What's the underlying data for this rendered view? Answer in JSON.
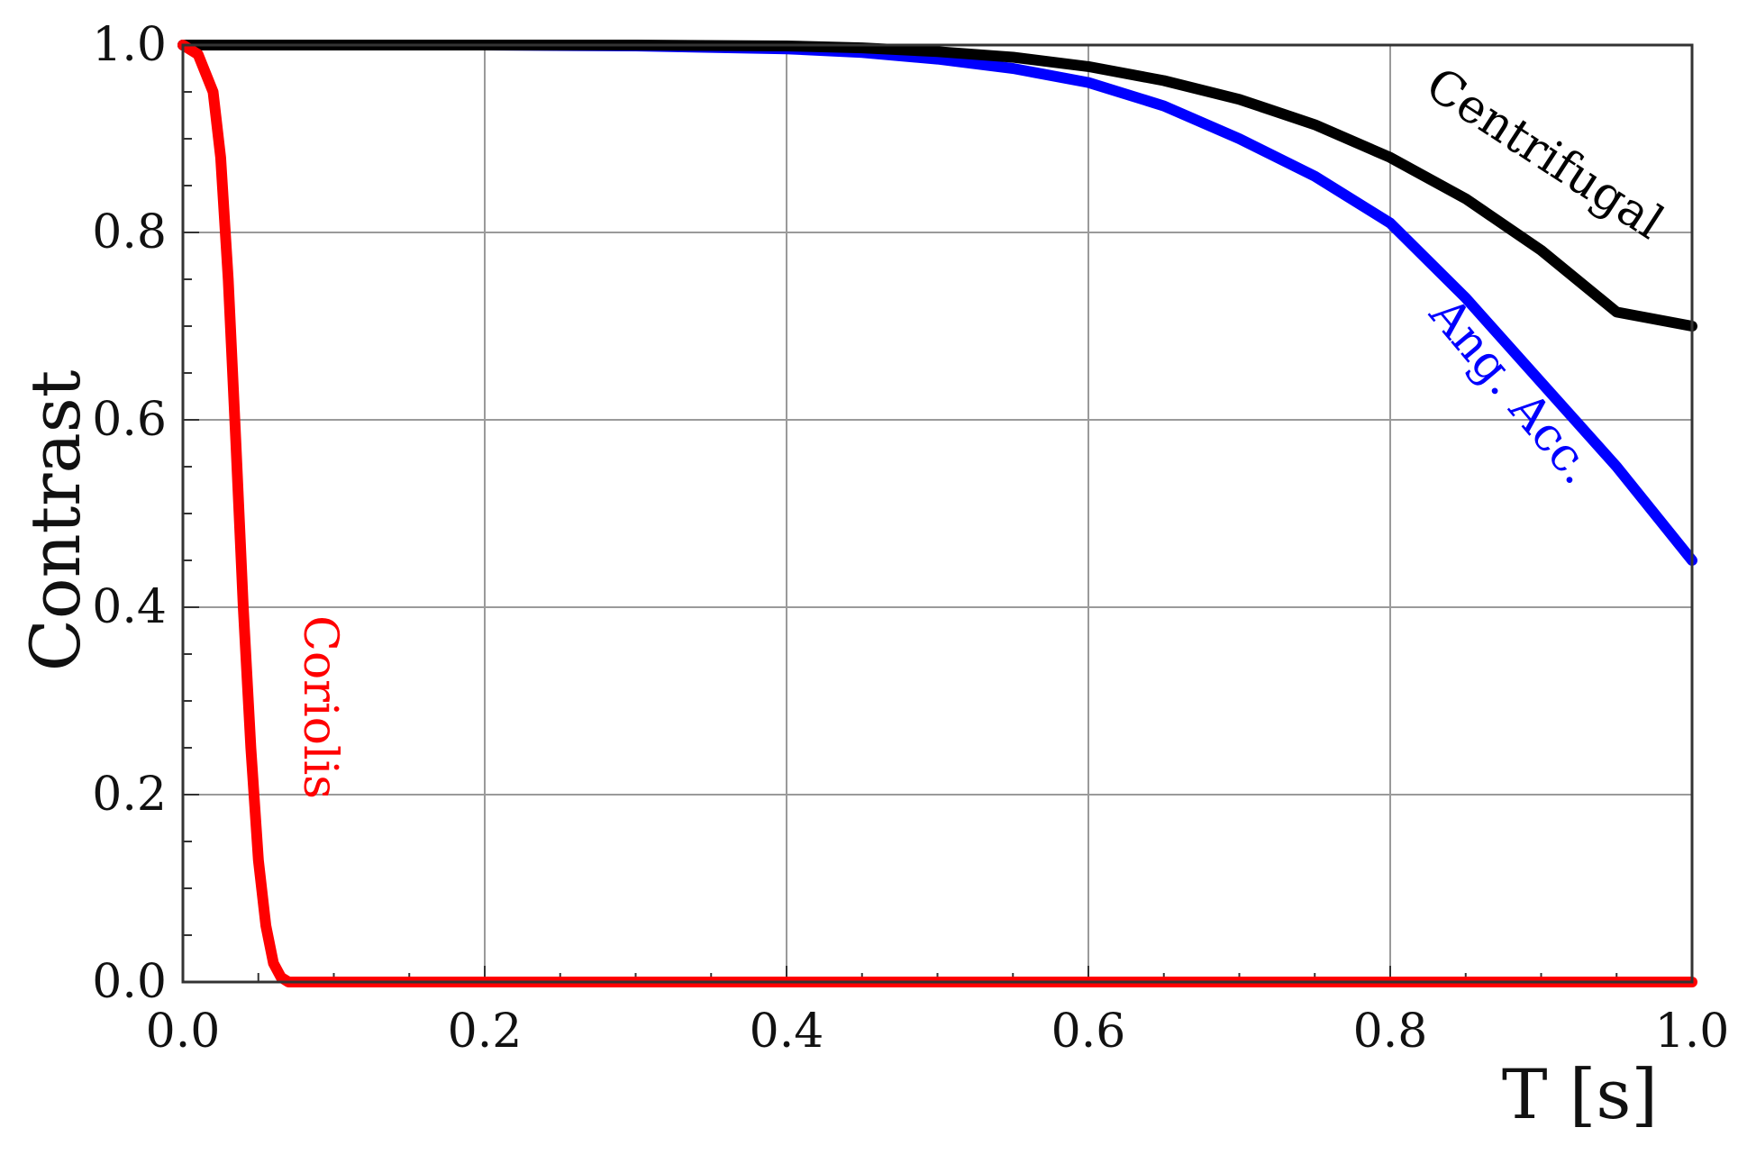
{
  "chart_data": {
    "type": "line",
    "xlabel": "T [s]",
    "ylabel": "Contrast",
    "xlim": [
      0.0,
      1.0
    ],
    "ylim": [
      0.0,
      1.0
    ],
    "grid": true,
    "x_ticks": [
      "0.0",
      "0.2",
      "0.4",
      "0.6",
      "0.8",
      "1.0"
    ],
    "y_ticks": [
      "0.0",
      "0.2",
      "0.4",
      "0.6",
      "0.8",
      "1.0"
    ],
    "series": [
      {
        "name": "Centrifugal",
        "color": "#000000",
        "x": [
          0.0,
          0.1,
          0.2,
          0.3,
          0.4,
          0.45,
          0.5,
          0.55,
          0.6,
          0.65,
          0.7,
          0.75,
          0.8,
          0.85,
          0.9,
          0.95,
          1.0
        ],
        "y": [
          1.0,
          1.0,
          1.0,
          1.0,
          0.999,
          0.997,
          0.993,
          0.987,
          0.977,
          0.962,
          0.942,
          0.915,
          0.88,
          0.836,
          0.781,
          0.715,
          0.7
        ]
      },
      {
        "name": "Ang. Acc.",
        "color": "#0000ff",
        "x": [
          0.0,
          0.1,
          0.2,
          0.3,
          0.4,
          0.45,
          0.5,
          0.55,
          0.6,
          0.65,
          0.7,
          0.75,
          0.8,
          0.85,
          0.9,
          0.95,
          1.0
        ],
        "y": [
          1.0,
          1.0,
          1.0,
          0.999,
          0.996,
          0.992,
          0.985,
          0.975,
          0.96,
          0.935,
          0.9,
          0.86,
          0.81,
          0.73,
          0.64,
          0.55,
          0.45
        ]
      },
      {
        "name": "Coriolis",
        "color": "#ff0000",
        "x": [
          0.0,
          0.01,
          0.02,
          0.025,
          0.03,
          0.035,
          0.04,
          0.045,
          0.05,
          0.055,
          0.06,
          0.065,
          0.07,
          0.08,
          0.1,
          0.2,
          0.4,
          0.6,
          0.8,
          1.0
        ],
        "y": [
          1.0,
          0.99,
          0.95,
          0.88,
          0.75,
          0.58,
          0.4,
          0.25,
          0.13,
          0.06,
          0.02,
          0.005,
          0.0,
          0.0,
          0.0,
          0.0,
          0.0,
          0.0,
          0.0,
          0.0
        ]
      }
    ]
  }
}
